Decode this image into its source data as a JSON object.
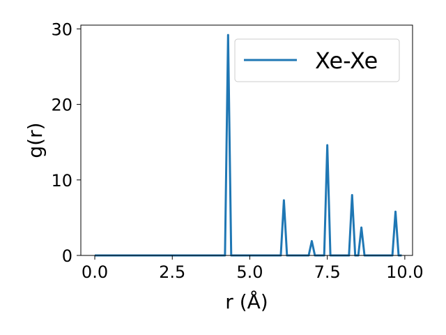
{
  "chart_data": {
    "type": "line",
    "title": "",
    "xlabel": "r (Å)",
    "ylabel": "g(r)",
    "xlim": [
      -0.45,
      10.25
    ],
    "ylim": [
      0,
      30.5
    ],
    "xticks": [
      0.0,
      2.5,
      5.0,
      7.5,
      10.0
    ],
    "xtick_labels": [
      "0.0",
      "2.5",
      "5.0",
      "7.5",
      "10.0"
    ],
    "yticks": [
      0,
      10,
      20,
      30
    ],
    "ytick_labels": [
      "0",
      "10",
      "20",
      "30"
    ],
    "grid": false,
    "legend": "upper right",
    "series": [
      {
        "name": "Xe-Xe",
        "color": "#1f77b4",
        "x": [
          0.0,
          4.2,
          4.3,
          4.4,
          6.0,
          6.1,
          6.2,
          6.9,
          7.0,
          7.1,
          7.4,
          7.5,
          7.6,
          8.2,
          8.3,
          8.4,
          8.5,
          8.6,
          8.7,
          9.6,
          9.7,
          9.8,
          9.9
        ],
        "y": [
          0,
          0,
          29.2,
          0,
          0,
          7.3,
          0,
          0,
          1.9,
          0,
          0,
          14.6,
          0,
          0,
          8.0,
          0,
          0,
          3.7,
          0,
          0,
          5.8,
          0,
          0
        ]
      }
    ]
  }
}
